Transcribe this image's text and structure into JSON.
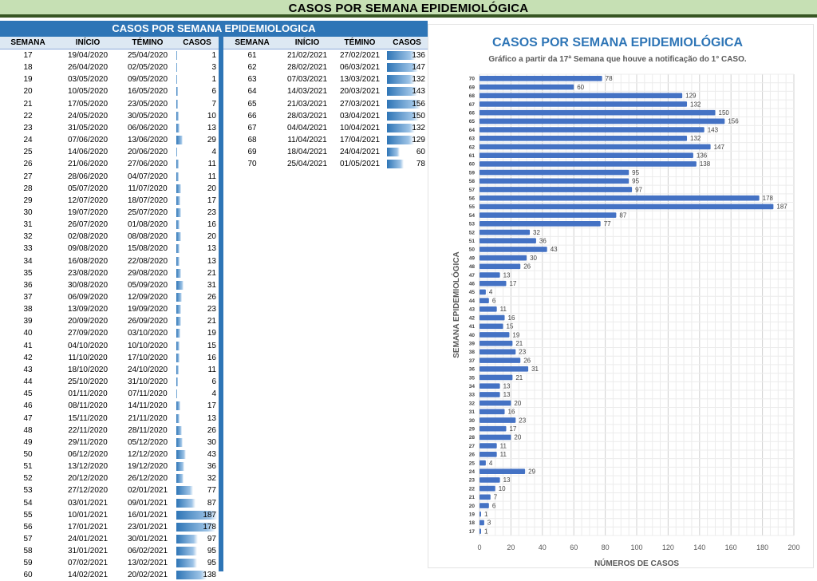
{
  "page": {
    "title": "CASOS POR SEMANA EPIDEMIOLÓGICA"
  },
  "table": {
    "title": "CASOS POR SEMANA EPIDEMIOLOGICA",
    "headers": [
      "SEMANA",
      "INÍCIO",
      "TÉMINO",
      "CASOS"
    ],
    "rows": [
      [
        "17",
        "19/04/2020",
        "25/04/2020",
        1
      ],
      [
        "18",
        "26/04/2020",
        "02/05/2020",
        3
      ],
      [
        "19",
        "03/05/2020",
        "09/05/2020",
        1
      ],
      [
        "20",
        "10/05/2020",
        "16/05/2020",
        6
      ],
      [
        "21",
        "17/05/2020",
        "23/05/2020",
        7
      ],
      [
        "22",
        "24/05/2020",
        "30/05/2020",
        10
      ],
      [
        "23",
        "31/05/2020",
        "06/06/2020",
        13
      ],
      [
        "24",
        "07/06/2020",
        "13/06/2020",
        29
      ],
      [
        "25",
        "14/06/2020",
        "20/06/2020",
        4
      ],
      [
        "26",
        "21/06/2020",
        "27/06/2020",
        11
      ],
      [
        "27",
        "28/06/2020",
        "04/07/2020",
        11
      ],
      [
        "28",
        "05/07/2020",
        "11/07/2020",
        20
      ],
      [
        "29",
        "12/07/2020",
        "18/07/2020",
        17
      ],
      [
        "30",
        "19/07/2020",
        "25/07/2020",
        23
      ],
      [
        "31",
        "26/07/2020",
        "01/08/2020",
        16
      ],
      [
        "32",
        "02/08/2020",
        "08/08/2020",
        20
      ],
      [
        "33",
        "09/08/2020",
        "15/08/2020",
        13
      ],
      [
        "34",
        "16/08/2020",
        "22/08/2020",
        13
      ],
      [
        "35",
        "23/08/2020",
        "29/08/2020",
        21
      ],
      [
        "36",
        "30/08/2020",
        "05/09/2020",
        31
      ],
      [
        "37",
        "06/09/2020",
        "12/09/2020",
        26
      ],
      [
        "38",
        "13/09/2020",
        "19/09/2020",
        23
      ],
      [
        "39",
        "20/09/2020",
        "26/09/2020",
        21
      ],
      [
        "40",
        "27/09/2020",
        "03/10/2020",
        19
      ],
      [
        "41",
        "04/10/2020",
        "10/10/2020",
        15
      ],
      [
        "42",
        "11/10/2020",
        "17/10/2020",
        16
      ],
      [
        "43",
        "18/10/2020",
        "24/10/2020",
        11
      ],
      [
        "44",
        "25/10/2020",
        "31/10/2020",
        6
      ],
      [
        "45",
        "01/11/2020",
        "07/11/2020",
        4
      ],
      [
        "46",
        "08/11/2020",
        "14/11/2020",
        17
      ],
      [
        "47",
        "15/11/2020",
        "21/11/2020",
        13
      ],
      [
        "48",
        "22/11/2020",
        "28/11/2020",
        26
      ],
      [
        "49",
        "29/11/2020",
        "05/12/2020",
        30
      ],
      [
        "50",
        "06/12/2020",
        "12/12/2020",
        43
      ],
      [
        "51",
        "13/12/2020",
        "19/12/2020",
        36
      ],
      [
        "52",
        "20/12/2020",
        "26/12/2020",
        32
      ],
      [
        "53",
        "27/12/2020",
        "02/01/2021",
        77
      ],
      [
        "54",
        "03/01/2021",
        "09/01/2021",
        87
      ],
      [
        "55",
        "10/01/2021",
        "16/01/2021",
        187
      ],
      [
        "56",
        "17/01/2021",
        "23/01/2021",
        178
      ],
      [
        "57",
        "24/01/2021",
        "30/01/2021",
        97
      ],
      [
        "58",
        "31/01/2021",
        "06/02/2021",
        95
      ],
      [
        "59",
        "07/02/2021",
        "13/02/2021",
        95
      ],
      [
        "60",
        "14/02/2021",
        "20/02/2021",
        138
      ],
      [
        "61",
        "21/02/2021",
        "27/02/2021",
        136
      ],
      [
        "62",
        "28/02/2021",
        "06/03/2021",
        147
      ],
      [
        "63",
        "07/03/2021",
        "13/03/2021",
        132
      ],
      [
        "64",
        "14/03/2021",
        "20/03/2021",
        143
      ],
      [
        "65",
        "21/03/2021",
        "27/03/2021",
        156
      ],
      [
        "66",
        "28/03/2021",
        "03/04/2021",
        150
      ],
      [
        "67",
        "04/04/2021",
        "10/04/2021",
        132
      ],
      [
        "68",
        "11/04/2021",
        "17/04/2021",
        129
      ],
      [
        "69",
        "18/04/2021",
        "24/04/2021",
        60
      ],
      [
        "70",
        "25/04/2021",
        "01/05/2021",
        78
      ]
    ]
  },
  "chart_data": {
    "type": "bar",
    "orientation": "horizontal",
    "title": "CASOS POR SEMANA EPIDEMIOLÓGICA",
    "subtitle": "Gráfico a partir da 17ª Semana que houve a notificação do 1° CASO.",
    "xlabel": "NÚMEROS DE CASOS",
    "ylabel": "SEMANA EPIDEMIOLÓGICA",
    "xlim": [
      0,
      200
    ],
    "xticks": [
      0,
      20,
      40,
      60,
      80,
      100,
      120,
      140,
      160,
      180,
      200
    ],
    "categories": [
      "17",
      "18",
      "19",
      "20",
      "21",
      "22",
      "23",
      "24",
      "25",
      "26",
      "27",
      "28",
      "29",
      "30",
      "31",
      "32",
      "33",
      "34",
      "35",
      "36",
      "37",
      "38",
      "39",
      "40",
      "41",
      "42",
      "43",
      "44",
      "45",
      "46",
      "47",
      "48",
      "49",
      "50",
      "51",
      "52",
      "53",
      "54",
      "55",
      "56",
      "57",
      "58",
      "59",
      "60",
      "61",
      "62",
      "63",
      "64",
      "65",
      "66",
      "67",
      "68",
      "69",
      "70"
    ],
    "values": [
      1,
      3,
      1,
      6,
      7,
      10,
      13,
      29,
      4,
      11,
      11,
      20,
      17,
      23,
      16,
      20,
      13,
      13,
      21,
      31,
      26,
      23,
      21,
      19,
      15,
      16,
      11,
      6,
      4,
      17,
      13,
      26,
      30,
      43,
      36,
      32,
      77,
      87,
      187,
      178,
      97,
      95,
      95,
      138,
      136,
      147,
      132,
      143,
      156,
      150,
      132,
      129,
      60,
      78
    ],
    "color": "#4472c4",
    "grid": true
  }
}
